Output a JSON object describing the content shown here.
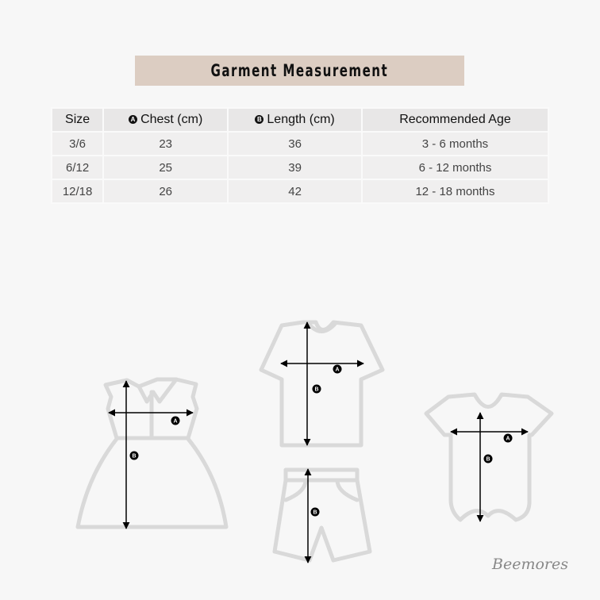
{
  "title": "Garment Measurement",
  "table": {
    "headers": [
      {
        "label": "Size"
      },
      {
        "badge": "A",
        "label": "Chest (cm)"
      },
      {
        "badge": "B",
        "label": "Length (cm)"
      },
      {
        "label": "Recommended Age"
      }
    ],
    "rows": [
      [
        "3/6",
        "23",
        "36",
        "3 - 6 months"
      ],
      [
        "6/12",
        "25",
        "39",
        "6 - 12 months"
      ],
      [
        "12/18",
        "26",
        "42",
        "12 - 18 months"
      ]
    ]
  },
  "diagram": {
    "label_a": "A",
    "label_b": "B"
  },
  "signature": "Beemores",
  "colors": {
    "title_bar": "#dccdc2",
    "outline": "#d9d9d9",
    "arrow": "#000000"
  }
}
